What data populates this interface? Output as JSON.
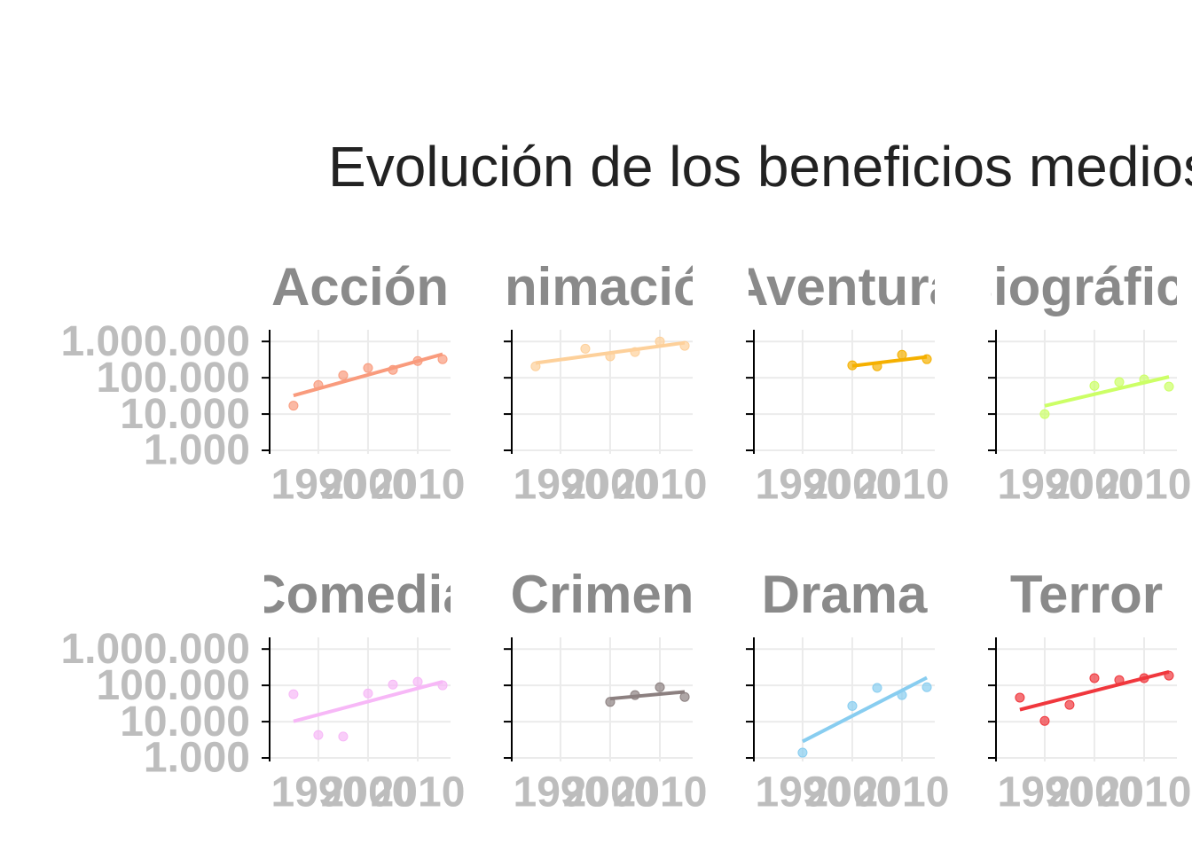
{
  "title": "Evolución de los beneficios medios",
  "chart_data": [
    {
      "type": "scatter",
      "title": "Acción",
      "color": "#f99b7d",
      "x": [
        1985,
        1990,
        1995,
        2000,
        2005,
        2010,
        2015
      ],
      "values": [
        17000,
        63000,
        117000,
        186000,
        165000,
        290000,
        324000
      ],
      "xlim": [
        1980.2,
        2016.6
      ],
      "xticks": [
        1990,
        2000,
        2010
      ],
      "ylim": [
        800,
        2100000
      ],
      "log_y": true,
      "grid": true,
      "yticks": [
        {
          "value": 1000,
          "label": "1.000"
        },
        {
          "value": 10000,
          "label": "10.000"
        },
        {
          "value": 100000,
          "label": "100.000"
        },
        {
          "value": 1000000,
          "label": "1.000.000"
        }
      ]
    },
    {
      "type": "scatter",
      "title": "Animación",
      "color": "#fdd09a",
      "x": [
        1985,
        1995,
        2000,
        2005,
        2010,
        2015
      ],
      "values": [
        207000,
        630000,
        390000,
        510000,
        1000000,
        760000
      ],
      "xlim": [
        1980.2,
        2016.6
      ],
      "xticks": [
        1990,
        2000,
        2010
      ],
      "ylim": [
        800,
        2100000
      ],
      "log_y": true,
      "grid": true,
      "yticks": [
        {
          "value": 1000,
          "label": "1.000"
        },
        {
          "value": 10000,
          "label": "10.000"
        },
        {
          "value": 100000,
          "label": "100.000"
        },
        {
          "value": 1000000,
          "label": "1.000.000"
        }
      ]
    },
    {
      "type": "scatter",
      "title": "Aventura",
      "color": "#f5b000",
      "x": [
        2000,
        2005,
        2010,
        2015
      ],
      "values": [
        220000,
        207000,
        430000,
        325000
      ],
      "xlim": [
        1980.2,
        2016.6
      ],
      "xticks": [
        1990,
        2000,
        2010
      ],
      "ylim": [
        800,
        2100000
      ],
      "log_y": true,
      "grid": true,
      "yticks": [
        {
          "value": 1000,
          "label": "1.000"
        },
        {
          "value": 10000,
          "label": "10.000"
        },
        {
          "value": 100000,
          "label": "100.000"
        },
        {
          "value": 1000000,
          "label": "1.000.000"
        }
      ]
    },
    {
      "type": "scatter",
      "title": "Biográfico",
      "color": "#ccff66",
      "x": [
        1990,
        2000,
        2005,
        2010,
        2015
      ],
      "values": [
        10000,
        60000,
        76000,
        90000,
        57000
      ],
      "xlim": [
        1980.2,
        2016.6
      ],
      "xticks": [
        1990,
        2000,
        2010
      ],
      "ylim": [
        800,
        2100000
      ],
      "log_y": true,
      "grid": true,
      "yticks": [
        {
          "value": 1000,
          "label": "1.000"
        },
        {
          "value": 10000,
          "label": "10.000"
        },
        {
          "value": 100000,
          "label": "100.000"
        },
        {
          "value": 1000000,
          "label": "1.000.000"
        }
      ]
    },
    {
      "type": "scatter",
      "title": "Comedia",
      "color": "#f7b8f7",
      "x": [
        1985,
        1990,
        1995,
        2000,
        2005,
        2010,
        2015
      ],
      "values": [
        57000,
        4300,
        3900,
        60000,
        105000,
        125000,
        100000
      ],
      "xlim": [
        1980.2,
        2016.6
      ],
      "xticks": [
        1990,
        2000,
        2010
      ],
      "ylim": [
        800,
        2100000
      ],
      "log_y": true,
      "grid": true,
      "yticks": [
        {
          "value": 1000,
          "label": "1.000"
        },
        {
          "value": 10000,
          "label": "10.000"
        },
        {
          "value": 100000,
          "label": "100.000"
        },
        {
          "value": 1000000,
          "label": "1.000.000"
        }
      ]
    },
    {
      "type": "scatter",
      "title": "Crimen",
      "color": "#8c8080",
      "x": [
        2000,
        2005,
        2010,
        2015
      ],
      "values": [
        35000,
        54000,
        89000,
        48000
      ],
      "xlim": [
        1980.2,
        2016.6
      ],
      "xticks": [
        1990,
        2000,
        2010
      ],
      "ylim": [
        800,
        2100000
      ],
      "log_y": true,
      "grid": true,
      "yticks": [
        {
          "value": 1000,
          "label": "1.000"
        },
        {
          "value": 10000,
          "label": "10.000"
        },
        {
          "value": 100000,
          "label": "100.000"
        },
        {
          "value": 1000000,
          "label": "1.000.000"
        }
      ]
    },
    {
      "type": "scatter",
      "title": "Drama",
      "color": "#88cdf0",
      "x": [
        1990,
        2000,
        2005,
        2010,
        2015
      ],
      "values": [
        1400,
        27000,
        85000,
        54000,
        89000
      ],
      "xlim": [
        1980.2,
        2016.6
      ],
      "xticks": [
        1990,
        2000,
        2010
      ],
      "ylim": [
        800,
        2100000
      ],
      "log_y": true,
      "grid": true,
      "yticks": [
        {
          "value": 1000,
          "label": "1.000"
        },
        {
          "value": 10000,
          "label": "10.000"
        },
        {
          "value": 100000,
          "label": "100.000"
        },
        {
          "value": 1000000,
          "label": "1.000.000"
        }
      ]
    },
    {
      "type": "scatter",
      "title": "Terror",
      "color": "#f0373d",
      "x": [
        1985,
        1990,
        1995,
        2000,
        2005,
        2010,
        2015
      ],
      "values": [
        46000,
        10500,
        29000,
        158000,
        140000,
        158000,
        186000
      ],
      "xlim": [
        1980.2,
        2016.6
      ],
      "xticks": [
        1990,
        2000,
        2010
      ],
      "ylim": [
        800,
        2100000
      ],
      "log_y": true,
      "grid": true,
      "yticks": [
        {
          "value": 1000,
          "label": "1.000"
        },
        {
          "value": 10000,
          "label": "10.000"
        },
        {
          "value": 100000,
          "label": "100.000"
        },
        {
          "value": 1000000,
          "label": "1.000.000"
        }
      ]
    }
  ]
}
